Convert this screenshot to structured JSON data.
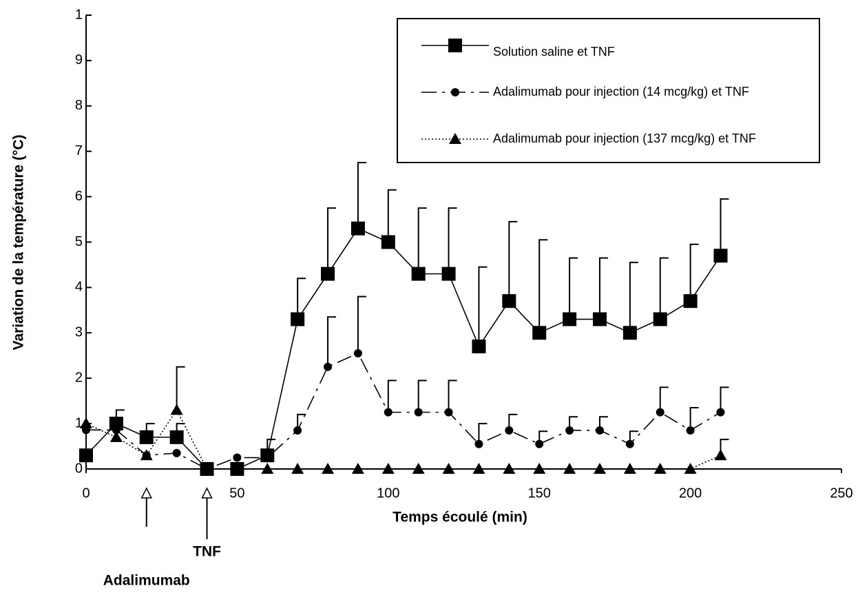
{
  "chart_data": {
    "type": "line",
    "xlabel": "Temps écoulé (min)",
    "ylabel": "Variation de la température (°C)",
    "x": [
      0,
      10,
      20,
      30,
      40,
      50,
      60,
      70,
      80,
      90,
      100,
      110,
      120,
      130,
      140,
      150,
      160,
      170,
      180,
      190,
      200,
      210
    ],
    "xlim": [
      0,
      250
    ],
    "xticks": [
      0,
      50,
      100,
      150,
      200,
      250
    ],
    "ylim": [
      0,
      1
    ],
    "yticks": [
      0,
      {
        "value": 0.1,
        "label": "1"
      },
      {
        "value": 0.2,
        "label": "2"
      },
      {
        "value": 0.3,
        "label": "3"
      },
      {
        "value": 0.4,
        "label": "4"
      },
      {
        "value": 0.5,
        "label": "5"
      },
      {
        "value": 0.6,
        "label": "6"
      },
      {
        "value": 0.7,
        "label": "7"
      },
      {
        "value": 0.8,
        "label": "8"
      },
      {
        "value": 0.9,
        "label": "9"
      },
      {
        "value": 1,
        "label": "1"
      }
    ],
    "series": [
      {
        "name": "Solution saline et TNF",
        "color": "#000000",
        "marker": "square",
        "dash": "solid",
        "values": [
          0.03,
          0.1,
          0.07,
          0.07,
          0,
          0,
          0.03,
          0.33,
          0.43,
          0.53,
          0.5,
          0.43,
          0.43,
          0.27,
          0.37,
          0.3,
          0.33,
          0.33,
          0.3,
          0.33,
          0.37,
          0.47
        ],
        "errors": [
          null,
          0.03,
          0.03,
          0.03,
          null,
          null,
          0.035,
          0.09,
          0.145,
          0.145,
          0.115,
          0.145,
          0.145,
          0.175,
          0.175,
          0.205,
          0.135,
          0.135,
          0.155,
          0.135,
          0.125,
          0.125
        ]
      },
      {
        "name": "Adalimumab pour injection (14 mcg/kg) et TNF",
        "color": "#000000",
        "marker": "circle",
        "dash": "dashdot",
        "values": [
          0.086,
          0.086,
          0.03,
          0.035,
          0,
          0.025,
          0.025,
          0.085,
          0.225,
          0.255,
          0.125,
          0.125,
          0.125,
          0.055,
          0.085,
          0.055,
          0.085,
          0.085,
          0.055,
          0.125,
          0.085,
          0.125
        ],
        "errors": [
          null,
          null,
          null,
          null,
          null,
          null,
          null,
          0.035,
          0.11,
          0.125,
          0.07,
          0.07,
          0.07,
          0.045,
          0.035,
          0.028,
          0.03,
          0.03,
          0.028,
          0.055,
          0.05,
          0.055
        ]
      },
      {
        "name": "Adalimumab pour injection (137 mcg/kg) et TNF",
        "color": "#000000",
        "marker": "triangle",
        "dash": "dotted",
        "values": [
          0.1,
          0.07,
          0.03,
          0.13,
          0,
          0,
          0,
          0,
          0,
          0,
          0,
          0,
          0,
          0,
          0,
          0,
          0,
          0,
          0,
          0,
          0,
          0.03
        ],
        "errors": [
          null,
          null,
          null,
          0.095,
          null,
          null,
          null,
          null,
          null,
          null,
          null,
          null,
          null,
          null,
          null,
          null,
          null,
          null,
          null,
          null,
          null,
          0.035
        ]
      }
    ],
    "annotations": [
      {
        "text": "Adalimumab",
        "x": 20
      },
      {
        "text": "TNF",
        "x": 40
      }
    ],
    "legend": "upper right"
  }
}
